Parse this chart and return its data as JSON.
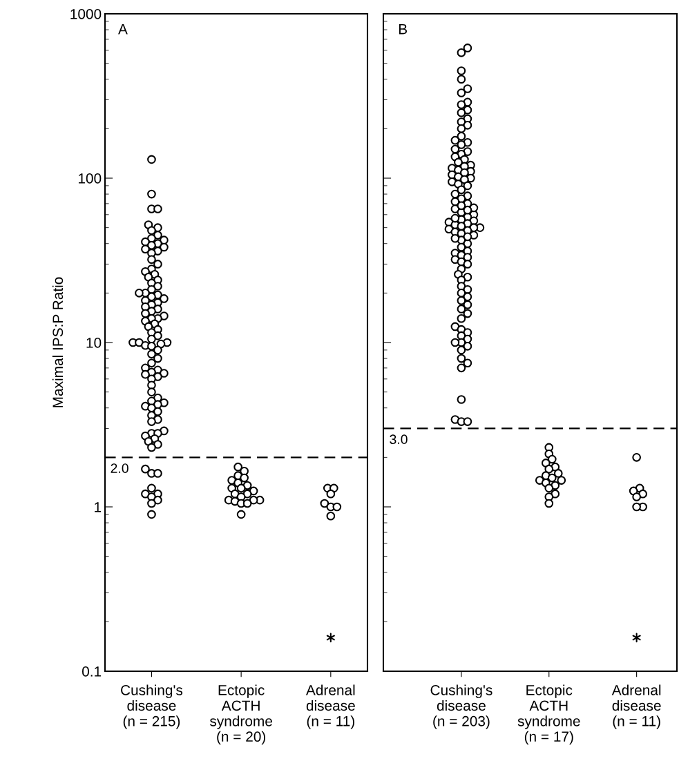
{
  "chart_data": [
    {
      "type": "scatter",
      "ylabel": "Maximal IPS:P Ratio",
      "annotations": [
        "A"
      ],
      "log": true,
      "ylim": [
        0.1,
        1000
      ],
      "yticks": [
        0.1,
        1,
        10,
        100,
        1000
      ],
      "grid": false,
      "categories": [
        "Cushing's\ndisease\n(n = 215)",
        "Ectopic\nACTH\nsyndrome\n(n = 20)",
        "Adrenal\ndisease\n(n = 11)"
      ],
      "ref_lines": [
        {
          "axis": "y",
          "value": 2.0,
          "label": "2.0",
          "color": "#000000",
          "line_style": "dashed"
        }
      ],
      "series": [
        {
          "color": "#000000",
          "marker": "circle",
          "x": [
            "Cushing's\ndisease\n(n = 215)",
            "Cushing's\ndisease\n(n = 215)",
            "Cushing's\ndisease\n(n = 215)",
            "Cushing's\ndisease\n(n = 215)",
            "Cushing's\ndisease\n(n = 215)",
            "Cushing's\ndisease\n(n = 215)",
            "Cushing's\ndisease\n(n = 215)",
            "Cushing's\ndisease\n(n = 215)",
            "Cushing's\ndisease\n(n = 215)",
            "Cushing's\ndisease\n(n = 215)",
            "Cushing's\ndisease\n(n = 215)",
            "Cushing's\ndisease\n(n = 215)",
            "Cushing's\ndisease\n(n = 215)",
            "Cushing's\ndisease\n(n = 215)",
            "Cushing's\ndisease\n(n = 215)",
            "Cushing's\ndisease\n(n = 215)",
            "Cushing's\ndisease\n(n = 215)",
            "Cushing's\ndisease\n(n = 215)",
            "Cushing's\ndisease\n(n = 215)",
            "Cushing's\ndisease\n(n = 215)",
            "Cushing's\ndisease\n(n = 215)",
            "Cushing's\ndisease\n(n = 215)",
            "Cushing's\ndisease\n(n = 215)",
            "Cushing's\ndisease\n(n = 215)",
            "Cushing's\ndisease\n(n = 215)",
            "Cushing's\ndisease\n(n = 215)",
            "Cushing's\ndisease\n(n = 215)",
            "Cushing's\ndisease\n(n = 215)",
            "Cushing's\ndisease\n(n = 215)",
            "Cushing's\ndisease\n(n = 215)",
            "Cushing's\ndisease\n(n = 215)",
            "Cushing's\ndisease\n(n = 215)",
            "Cushing's\ndisease\n(n = 215)",
            "Cushing's\ndisease\n(n = 215)",
            "Cushing's\ndisease\n(n = 215)",
            "Cushing's\ndisease\n(n = 215)",
            "Cushing's\ndisease\n(n = 215)",
            "Cushing's\ndisease\n(n = 215)",
            "Cushing's\ndisease\n(n = 215)",
            "Cushing's\ndisease\n(n = 215)",
            "Cushing's\ndisease\n(n = 215)",
            "Cushing's\ndisease\n(n = 215)",
            "Cushing's\ndisease\n(n = 215)",
            "Cushing's\ndisease\n(n = 215)",
            "Cushing's\ndisease\n(n = 215)",
            "Cushing's\ndisease\n(n = 215)",
            "Cushing's\ndisease\n(n = 215)",
            "Cushing's\ndisease\n(n = 215)",
            "Cushing's\ndisease\n(n = 215)",
            "Cushing's\ndisease\n(n = 215)",
            "Cushing's\ndisease\n(n = 215)",
            "Cushing's\ndisease\n(n = 215)",
            "Cushing's\ndisease\n(n = 215)",
            "Cushing's\ndisease\n(n = 215)",
            "Cushing's\ndisease\n(n = 215)",
            "Cushing's\ndisease\n(n = 215)",
            "Cushing's\ndisease\n(n = 215)",
            "Cushing's\ndisease\n(n = 215)",
            "Cushing's\ndisease\n(n = 215)",
            "Cushing's\ndisease\n(n = 215)",
            "Cushing's\ndisease\n(n = 215)",
            "Cushing's\ndisease\n(n = 215)",
            "Cushing's\ndisease\n(n = 215)",
            "Cushing's\ndisease\n(n = 215)",
            "Cushing's\ndisease\n(n = 215)",
            "Cushing's\ndisease\n(n = 215)",
            "Cushing's\ndisease\n(n = 215)",
            "Cushing's\ndisease\n(n = 215)",
            "Cushing's\ndisease\n(n = 215)",
            "Cushing's\ndisease\n(n = 215)",
            "Cushing's\ndisease\n(n = 215)",
            "Cushing's\ndisease\n(n = 215)",
            "Cushing's\ndisease\n(n = 215)",
            "Cushing's\ndisease\n(n = 215)",
            "Cushing's\ndisease\n(n = 215)",
            "Cushing's\ndisease\n(n = 215)",
            "Cushing's\ndisease\n(n = 215)",
            "Cushing's\ndisease\n(n = 215)",
            "Cushing's\ndisease\n(n = 215)",
            "Cushing's\ndisease\n(n = 215)",
            "Cushing's\ndisease\n(n = 215)",
            "Cushing's\ndisease\n(n = 215)",
            "Cushing's\ndisease\n(n = 215)",
            "Cushing's\ndisease\n(n = 215)",
            "Cushing's\ndisease\n(n = 215)",
            "Cushing's\ndisease\n(n = 215)",
            "Cushing's\ndisease\n(n = 215)",
            "Cushing's\ndisease\n(n = 215)",
            "Cushing's\ndisease\n(n = 215)",
            "Cushing's\ndisease\n(n = 215)",
            "Cushing's\ndisease\n(n = 215)",
            "Cushing's\ndisease\n(n = 215)",
            "Cushing's\ndisease\n(n = 215)",
            "Cushing's\ndisease\n(n = 215)",
            "Cushing's\ndisease\n(n = 215)",
            "Cushing's\ndisease\n(n = 215)"
          ],
          "values": [
            130,
            80,
            65,
            65,
            52,
            50,
            48,
            45,
            43,
            42,
            41,
            40,
            39,
            38,
            37,
            36,
            35,
            32,
            30,
            28,
            27,
            26,
            25,
            24,
            23,
            22,
            21,
            20,
            20,
            19.5,
            19,
            18.5,
            18,
            17.5,
            17,
            16.5,
            16,
            15.5,
            15,
            14.5,
            14,
            14,
            13.5,
            13,
            12.5,
            12,
            11.5,
            11,
            10.5,
            10,
            10,
            10,
            9.8,
            9.6,
            9.5,
            9,
            8.5,
            8,
            7.5,
            7,
            6.8,
            6.6,
            6.5,
            6.4,
            6.2,
            6,
            5.5,
            5,
            4.6,
            4.4,
            4.3,
            4.2,
            4.1,
            4,
            3.8,
            3.6,
            3.4,
            3.3,
            2.9,
            2.8,
            2.8,
            2.7,
            2.6,
            2.5,
            2.4,
            2.3,
            1.7,
            1.6,
            1.6,
            1.3,
            1.2,
            1.2,
            1.15,
            1.1,
            1.05,
            0.9
          ]
        },
        {
          "color": "#000000",
          "marker": "circle",
          "x": [
            "Ectopic\nACTH\nsyndrome\n(n = 20)",
            "Ectopic\nACTH\nsyndrome\n(n = 20)",
            "Ectopic\nACTH\nsyndrome\n(n = 20)",
            "Ectopic\nACTH\nsyndrome\n(n = 20)",
            "Ectopic\nACTH\nsyndrome\n(n = 20)",
            "Ectopic\nACTH\nsyndrome\n(n = 20)",
            "Ectopic\nACTH\nsyndrome\n(n = 20)",
            "Ectopic\nACTH\nsyndrome\n(n = 20)",
            "Ectopic\nACTH\nsyndrome\n(n = 20)",
            "Ectopic\nACTH\nsyndrome\n(n = 20)",
            "Ectopic\nACTH\nsyndrome\n(n = 20)",
            "Ectopic\nACTH\nsyndrome\n(n = 20)",
            "Ectopic\nACTH\nsyndrome\n(n = 20)",
            "Ectopic\nACTH\nsyndrome\n(n = 20)",
            "Ectopic\nACTH\nsyndrome\n(n = 20)",
            "Ectopic\nACTH\nsyndrome\n(n = 20)",
            "Ectopic\nACTH\nsyndrome\n(n = 20)",
            "Ectopic\nACTH\nsyndrome\n(n = 20)",
            "Ectopic\nACTH\nsyndrome\n(n = 20)",
            "Ectopic\nACTH\nsyndrome\n(n = 20)"
          ],
          "values": [
            1.75,
            1.65,
            1.55,
            1.5,
            1.45,
            1.4,
            1.35,
            1.3,
            1.3,
            1.25,
            1.2,
            1.2,
            1.15,
            1.1,
            1.1,
            1.1,
            1.08,
            1.05,
            1.05,
            0.9
          ]
        },
        {
          "color": "#000000",
          "marker": "circle",
          "x": [
            "Adrenal\ndisease\n(n = 11)",
            "Adrenal\ndisease\n(n = 11)",
            "Adrenal\ndisease\n(n = 11)",
            "Adrenal\ndisease\n(n = 11)",
            "Adrenal\ndisease\n(n = 11)",
            "Adrenal\ndisease\n(n = 11)",
            "Adrenal\ndisease\n(n = 11)"
          ],
          "values": [
            1.3,
            1.3,
            1.2,
            1.05,
            1.0,
            1.0,
            0.88
          ]
        },
        {
          "color": "#000000",
          "marker": "cross",
          "x": [
            "Adrenal\ndisease\n(n = 11)"
          ],
          "values": [
            0.16
          ]
        }
      ]
    },
    {
      "type": "scatter",
      "annotations": [
        "B"
      ],
      "log": true,
      "ylim": [
        0.1,
        1000
      ],
      "yticks": [
        0.1,
        1,
        10,
        100,
        1000
      ],
      "tick_labels": "x",
      "grid": false,
      "categories": [
        "Cushing's\ndisease\n(n = 203)",
        "Ectopic\nACTH\nsyndrome\n(n = 17)",
        "Adrenal\ndisease\n(n = 11)"
      ],
      "ref_lines": [
        {
          "axis": "y",
          "value": 3.0,
          "label": "3.0",
          "color": "#000000",
          "line_style": "dashed"
        }
      ],
      "series": [
        {
          "color": "#000000",
          "marker": "circle",
          "x": [
            "Cushing's\ndisease\n(n = 203)",
            "Cushing's\ndisease\n(n = 203)",
            "Cushing's\ndisease\n(n = 203)",
            "Cushing's\ndisease\n(n = 203)",
            "Cushing's\ndisease\n(n = 203)",
            "Cushing's\ndisease\n(n = 203)",
            "Cushing's\ndisease\n(n = 203)",
            "Cushing's\ndisease\n(n = 203)",
            "Cushing's\ndisease\n(n = 203)",
            "Cushing's\ndisease\n(n = 203)",
            "Cushing's\ndisease\n(n = 203)",
            "Cushing's\ndisease\n(n = 203)",
            "Cushing's\ndisease\n(n = 203)",
            "Cushing's\ndisease\n(n = 203)",
            "Cushing's\ndisease\n(n = 203)",
            "Cushing's\ndisease\n(n = 203)",
            "Cushing's\ndisease\n(n = 203)",
            "Cushing's\ndisease\n(n = 203)",
            "Cushing's\ndisease\n(n = 203)",
            "Cushing's\ndisease\n(n = 203)",
            "Cushing's\ndisease\n(n = 203)",
            "Cushing's\ndisease\n(n = 203)",
            "Cushing's\ndisease\n(n = 203)",
            "Cushing's\ndisease\n(n = 203)",
            "Cushing's\ndisease\n(n = 203)",
            "Cushing's\ndisease\n(n = 203)",
            "Cushing's\ndisease\n(n = 203)",
            "Cushing's\ndisease\n(n = 203)",
            "Cushing's\ndisease\n(n = 203)",
            "Cushing's\ndisease\n(n = 203)",
            "Cushing's\ndisease\n(n = 203)",
            "Cushing's\ndisease\n(n = 203)",
            "Cushing's\ndisease\n(n = 203)",
            "Cushing's\ndisease\n(n = 203)",
            "Cushing's\ndisease\n(n = 203)",
            "Cushing's\ndisease\n(n = 203)",
            "Cushing's\ndisease\n(n = 203)",
            "Cushing's\ndisease\n(n = 203)",
            "Cushing's\ndisease\n(n = 203)",
            "Cushing's\ndisease\n(n = 203)",
            "Cushing's\ndisease\n(n = 203)",
            "Cushing's\ndisease\n(n = 203)",
            "Cushing's\ndisease\n(n = 203)",
            "Cushing's\ndisease\n(n = 203)",
            "Cushing's\ndisease\n(n = 203)",
            "Cushing's\ndisease\n(n = 203)",
            "Cushing's\ndisease\n(n = 203)",
            "Cushing's\ndisease\n(n = 203)",
            "Cushing's\ndisease\n(n = 203)",
            "Cushing's\ndisease\n(n = 203)",
            "Cushing's\ndisease\n(n = 203)",
            "Cushing's\ndisease\n(n = 203)",
            "Cushing's\ndisease\n(n = 203)",
            "Cushing's\ndisease\n(n = 203)",
            "Cushing's\ndisease\n(n = 203)",
            "Cushing's\ndisease\n(n = 203)",
            "Cushing's\ndisease\n(n = 203)",
            "Cushing's\ndisease\n(n = 203)",
            "Cushing's\ndisease\n(n = 203)",
            "Cushing's\ndisease\n(n = 203)",
            "Cushing's\ndisease\n(n = 203)",
            "Cushing's\ndisease\n(n = 203)",
            "Cushing's\ndisease\n(n = 203)",
            "Cushing's\ndisease\n(n = 203)",
            "Cushing's\ndisease\n(n = 203)",
            "Cushing's\ndisease\n(n = 203)",
            "Cushing's\ndisease\n(n = 203)",
            "Cushing's\ndisease\n(n = 203)",
            "Cushing's\ndisease\n(n = 203)",
            "Cushing's\ndisease\n(n = 203)",
            "Cushing's\ndisease\n(n = 203)",
            "Cushing's\ndisease\n(n = 203)",
            "Cushing's\ndisease\n(n = 203)",
            "Cushing's\ndisease\n(n = 203)",
            "Cushing's\ndisease\n(n = 203)",
            "Cushing's\ndisease\n(n = 203)",
            "Cushing's\ndisease\n(n = 203)",
            "Cushing's\ndisease\n(n = 203)",
            "Cushing's\ndisease\n(n = 203)",
            "Cushing's\ndisease\n(n = 203)",
            "Cushing's\ndisease\n(n = 203)",
            "Cushing's\ndisease\n(n = 203)",
            "Cushing's\ndisease\n(n = 203)",
            "Cushing's\ndisease\n(n = 203)",
            "Cushing's\ndisease\n(n = 203)",
            "Cushing's\ndisease\n(n = 203)",
            "Cushing's\ndisease\n(n = 203)",
            "Cushing's\ndisease\n(n = 203)",
            "Cushing's\ndisease\n(n = 203)",
            "Cushing's\ndisease\n(n = 203)",
            "Cushing's\ndisease\n(n = 203)",
            "Cushing's\ndisease\n(n = 203)",
            "Cushing's\ndisease\n(n = 203)",
            "Cushing's\ndisease\n(n = 203)",
            "Cushing's\ndisease\n(n = 203)",
            "Cushing's\ndisease\n(n = 203)",
            "Cushing's\ndisease\n(n = 203)",
            "Cushing's\ndisease\n(n = 203)",
            "Cushing's\ndisease\n(n = 203)",
            "Cushing's\ndisease\n(n = 203)",
            "Cushing's\ndisease\n(n = 203)",
            "Cushing's\ndisease\n(n = 203)",
            "Cushing's\ndisease\n(n = 203)",
            "Cushing's\ndisease\n(n = 203)",
            "Cushing's\ndisease\n(n = 203)"
          ],
          "values": [
            620,
            580,
            450,
            400,
            350,
            330,
            290,
            280,
            260,
            250,
            230,
            220,
            210,
            200,
            180,
            170,
            165,
            160,
            150,
            145,
            140,
            135,
            130,
            125,
            120,
            118,
            115,
            112,
            110,
            108,
            105,
            102,
            100,
            98,
            95,
            92,
            90,
            85,
            80,
            78,
            75,
            72,
            70,
            65,
            62,
            60,
            58,
            56,
            55,
            54,
            53,
            52,
            51,
            50,
            50,
            49,
            48,
            47,
            46,
            45,
            42,
            40,
            38,
            36,
            35,
            34,
            33,
            32,
            31,
            30,
            28,
            26,
            25,
            24,
            22,
            21,
            20,
            19,
            18,
            17,
            16,
            15,
            14,
            12.5,
            12,
            11.5,
            11,
            10.5,
            10,
            10,
            9.5,
            9,
            8,
            7.5,
            7,
            4.5,
            3.4,
            3.3,
            3.3,
            68,
            66,
            64,
            57,
            44,
            43
          ]
        },
        {
          "color": "#000000",
          "marker": "circle",
          "x": [
            "Ectopic\nACTH\nsyndrome\n(n = 17)",
            "Ectopic\nACTH\nsyndrome\n(n = 17)",
            "Ectopic\nACTH\nsyndrome\n(n = 17)",
            "Ectopic\nACTH\nsyndrome\n(n = 17)",
            "Ectopic\nACTH\nsyndrome\n(n = 17)",
            "Ectopic\nACTH\nsyndrome\n(n = 17)",
            "Ectopic\nACTH\nsyndrome\n(n = 17)",
            "Ectopic\nACTH\nsyndrome\n(n = 17)",
            "Ectopic\nACTH\nsyndrome\n(n = 17)",
            "Ectopic\nACTH\nsyndrome\n(n = 17)",
            "Ectopic\nACTH\nsyndrome\n(n = 17)",
            "Ectopic\nACTH\nsyndrome\n(n = 17)",
            "Ectopic\nACTH\nsyndrome\n(n = 17)",
            "Ectopic\nACTH\nsyndrome\n(n = 17)",
            "Ectopic\nACTH\nsyndrome\n(n = 17)",
            "Ectopic\nACTH\nsyndrome\n(n = 17)",
            "Ectopic\nACTH\nsyndrome\n(n = 17)"
          ],
          "values": [
            2.3,
            2.1,
            1.95,
            1.85,
            1.75,
            1.7,
            1.6,
            1.55,
            1.5,
            1.45,
            1.45,
            1.4,
            1.35,
            1.3,
            1.2,
            1.15,
            1.05
          ]
        },
        {
          "color": "#000000",
          "marker": "circle",
          "x": [
            "Adrenal\ndisease\n(n = 11)",
            "Adrenal\ndisease\n(n = 11)",
            "Adrenal\ndisease\n(n = 11)",
            "Adrenal\ndisease\n(n = 11)",
            "Adrenal\ndisease\n(n = 11)",
            "Adrenal\ndisease\n(n = 11)",
            "Adrenal\ndisease\n(n = 11)"
          ],
          "values": [
            2.0,
            1.3,
            1.25,
            1.2,
            1.15,
            1.0,
            1.0
          ]
        },
        {
          "color": "#000000",
          "marker": "cross",
          "x": [
            "Adrenal\ndisease\n(n = 11)"
          ],
          "values": [
            0.16
          ]
        }
      ]
    }
  ]
}
